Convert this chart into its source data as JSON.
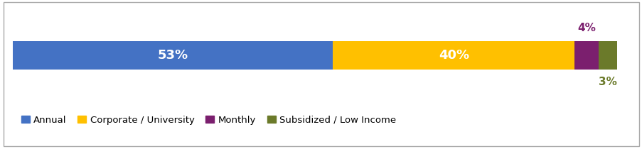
{
  "categories": [
    "Annual",
    "Corporate / University",
    "Monthly",
    "Subsidized / Low Income"
  ],
  "values": [
    53,
    40,
    4,
    3
  ],
  "colors": [
    "#4472C4",
    "#FFC000",
    "#7B1F6E",
    "#6B7A2A"
  ],
  "bar_height": 0.5,
  "fig_width": 9.04,
  "fig_height": 2.1,
  "dpi": 100,
  "background_color": "#FFFFFF",
  "border_color": "#AAAAAA",
  "legend_fontsize": 9.5,
  "bar_label_fontsize": 13,
  "outside_label_fontsize": 11
}
